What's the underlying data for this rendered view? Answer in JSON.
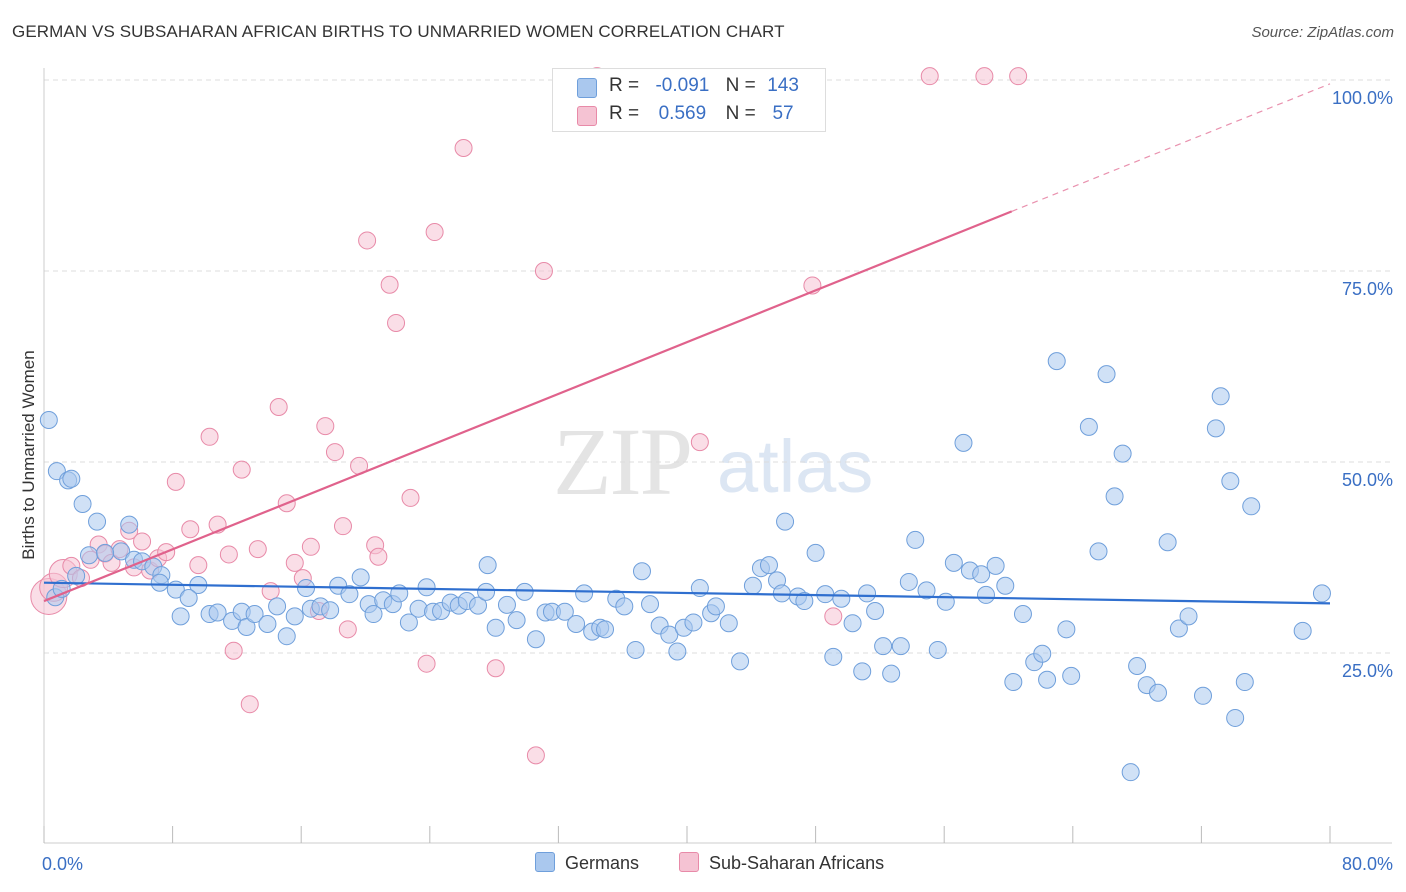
{
  "title": "GERMAN VS SUBSAHARAN AFRICAN BIRTHS TO UNMARRIED WOMEN CORRELATION CHART",
  "source": "Source: ZipAtlas.com",
  "watermark": {
    "zip": "ZIP",
    "atlas": "atlas"
  },
  "colors": {
    "germans_fill": "#aac8ee",
    "germans_stroke": "#6f9fdb",
    "germans_line": "#2f6fcf",
    "ssa_fill": "#f5c3d3",
    "ssa_stroke": "#e88aa8",
    "ssa_line": "#e0628c",
    "tick_label": "#3a6fc4",
    "grid": "#dcdcdc"
  },
  "legend_top": [
    {
      "r_label": "R =",
      "r_value": "-0.091",
      "n_label": "N =",
      "n_value": "143"
    },
    {
      "r_label": "R =",
      "r_value": "0.569",
      "n_label": "N =",
      "n_value": "57"
    }
  ],
  "legend_bottom": [
    "Germans",
    "Sub-Saharan Africans"
  ],
  "chart_data": {
    "type": "scatter",
    "title": "GERMAN VS SUBSAHARAN AFRICAN BIRTHS TO UNMARRIED WOMEN CORRELATION CHART",
    "xlabel": "",
    "ylabel": "Births to Unmarried Women",
    "xlim": [
      0,
      80
    ],
    "ylim": [
      0,
      105
    ],
    "x_tick_labels": [
      "0.0%",
      "80.0%"
    ],
    "y_ticks": [
      25,
      50,
      75,
      100
    ],
    "y_tick_labels": [
      "25.0%",
      "50.0%",
      "75.0%",
      "100.0%"
    ],
    "grid": "horizontal dashed",
    "legend_position": "top-center",
    "series": [
      {
        "name": "Germans",
        "R": -0.091,
        "N": 143,
        "trend": {
          "x": [
            0,
            80
          ],
          "y": [
            34.2,
            31.5
          ]
        },
        "points": [
          [
            0.3,
            55.5
          ],
          [
            0.8,
            48.8
          ],
          [
            1.5,
            47.6
          ],
          [
            1.7,
            47.8
          ],
          [
            2.4,
            44.5
          ],
          [
            3.3,
            42.2
          ],
          [
            2.8,
            37.8
          ],
          [
            5.3,
            41.8
          ],
          [
            4.8,
            38.3
          ],
          [
            5.6,
            37.2
          ],
          [
            6.1,
            37.0
          ],
          [
            6.8,
            36.3
          ],
          [
            7.3,
            35.2
          ],
          [
            7.2,
            34.2
          ],
          [
            8.2,
            33.3
          ],
          [
            9.6,
            33.9
          ],
          [
            9.0,
            32.2
          ],
          [
            8.5,
            29.8
          ],
          [
            10.3,
            30.1
          ],
          [
            10.8,
            30.3
          ],
          [
            11.7,
            29.2
          ],
          [
            12.3,
            30.4
          ],
          [
            12.6,
            28.4
          ],
          [
            13.1,
            30.1
          ],
          [
            13.9,
            28.8
          ],
          [
            14.5,
            31.1
          ],
          [
            15.1,
            27.2
          ],
          [
            15.6,
            29.8
          ],
          [
            16.3,
            33.5
          ],
          [
            16.6,
            30.8
          ],
          [
            17.2,
            31.1
          ],
          [
            17.8,
            30.6
          ],
          [
            18.3,
            33.8
          ],
          [
            19.0,
            32.7
          ],
          [
            19.7,
            34.9
          ],
          [
            20.2,
            31.4
          ],
          [
            20.5,
            30.1
          ],
          [
            21.1,
            31.9
          ],
          [
            21.7,
            31.4
          ],
          [
            22.1,
            32.8
          ],
          [
            22.7,
            29.0
          ],
          [
            23.3,
            30.8
          ],
          [
            23.8,
            33.6
          ],
          [
            24.2,
            30.4
          ],
          [
            24.7,
            30.5
          ],
          [
            25.3,
            31.6
          ],
          [
            25.8,
            31.2
          ],
          [
            26.3,
            31.8
          ],
          [
            27.0,
            31.2
          ],
          [
            27.6,
            36.5
          ],
          [
            27.5,
            33.0
          ],
          [
            28.1,
            28.3
          ],
          [
            28.8,
            31.3
          ],
          [
            29.4,
            29.3
          ],
          [
            29.9,
            33.0
          ],
          [
            30.6,
            26.8
          ],
          [
            31.2,
            30.3
          ],
          [
            31.6,
            30.4
          ],
          [
            32.4,
            30.4
          ],
          [
            33.1,
            28.8
          ],
          [
            33.6,
            32.8
          ],
          [
            34.1,
            27.8
          ],
          [
            34.6,
            28.3
          ],
          [
            34.9,
            28.1
          ],
          [
            35.6,
            32.1
          ],
          [
            36.1,
            31.1
          ],
          [
            36.8,
            25.4
          ],
          [
            37.2,
            35.7
          ],
          [
            37.7,
            31.4
          ],
          [
            38.3,
            28.6
          ],
          [
            38.9,
            27.4
          ],
          [
            39.4,
            25.2
          ],
          [
            39.8,
            28.3
          ],
          [
            40.4,
            29.0
          ],
          [
            40.8,
            33.5
          ],
          [
            41.5,
            30.2
          ],
          [
            41.8,
            31.1
          ],
          [
            42.6,
            28.9
          ],
          [
            43.3,
            23.9
          ],
          [
            44.1,
            33.8
          ],
          [
            44.6,
            36.1
          ],
          [
            45.1,
            36.5
          ],
          [
            45.6,
            34.5
          ],
          [
            45.9,
            32.8
          ],
          [
            46.1,
            42.2
          ],
          [
            46.9,
            32.4
          ],
          [
            47.3,
            31.8
          ],
          [
            48.0,
            38.1
          ],
          [
            48.6,
            32.7
          ],
          [
            49.1,
            24.5
          ],
          [
            49.6,
            32.1
          ],
          [
            50.3,
            28.9
          ],
          [
            50.9,
            22.6
          ],
          [
            51.2,
            32.8
          ],
          [
            51.7,
            30.5
          ],
          [
            52.2,
            25.9
          ],
          [
            52.7,
            22.3
          ],
          [
            53.3,
            25.9
          ],
          [
            53.8,
            34.3
          ],
          [
            54.2,
            39.8
          ],
          [
            54.9,
            33.2
          ],
          [
            55.6,
            25.4
          ],
          [
            56.1,
            31.7
          ],
          [
            56.6,
            36.8
          ],
          [
            57.2,
            52.5
          ],
          [
            57.6,
            35.8
          ],
          [
            58.3,
            35.3
          ],
          [
            58.6,
            32.6
          ],
          [
            59.2,
            36.4
          ],
          [
            59.8,
            33.8
          ],
          [
            60.3,
            21.2
          ],
          [
            60.9,
            30.1
          ],
          [
            61.6,
            23.8
          ],
          [
            62.1,
            24.9
          ],
          [
            62.4,
            21.5
          ],
          [
            63.0,
            63.2
          ],
          [
            63.6,
            28.1
          ],
          [
            63.9,
            22.0
          ],
          [
            65.0,
            54.6
          ],
          [
            65.6,
            38.3
          ],
          [
            66.1,
            61.5
          ],
          [
            66.6,
            45.5
          ],
          [
            67.1,
            51.1
          ],
          [
            67.6,
            9.4
          ],
          [
            68.0,
            23.3
          ],
          [
            68.6,
            20.8
          ],
          [
            69.3,
            19.8
          ],
          [
            69.9,
            39.5
          ],
          [
            70.6,
            28.2
          ],
          [
            71.2,
            29.8
          ],
          [
            72.1,
            19.4
          ],
          [
            72.9,
            54.4
          ],
          [
            73.2,
            58.6
          ],
          [
            73.8,
            47.5
          ],
          [
            74.1,
            16.5
          ],
          [
            74.7,
            21.2
          ],
          [
            75.1,
            44.2
          ],
          [
            78.3,
            27.9
          ],
          [
            79.5,
            32.8
          ],
          [
            0.7,
            32.3
          ],
          [
            1.1,
            33.4
          ],
          [
            2.0,
            35.1
          ],
          [
            3.8,
            38.1
          ]
        ]
      },
      {
        "name": "Sub-Saharan Africans",
        "R": 0.569,
        "N": 57,
        "trend": {
          "x": [
            0,
            60.2
          ],
          "y": [
            31.8,
            82.8
          ]
        },
        "trend_dashed": {
          "x": [
            60.2,
            80
          ],
          "y": [
            82.8,
            99.5
          ]
        },
        "points": [
          [
            0.3,
            32.4
          ],
          [
            0.6,
            33.6
          ],
          [
            1.2,
            35.4
          ],
          [
            1.7,
            36.4
          ],
          [
            2.3,
            34.8
          ],
          [
            2.9,
            37.2
          ],
          [
            3.4,
            39.2
          ],
          [
            3.8,
            38.0
          ],
          [
            4.2,
            36.8
          ],
          [
            4.7,
            38.6
          ],
          [
            5.3,
            41.0
          ],
          [
            5.6,
            36.2
          ],
          [
            6.1,
            39.6
          ],
          [
            6.6,
            35.8
          ],
          [
            7.1,
            37.4
          ],
          [
            7.6,
            38.2
          ],
          [
            8.2,
            47.4
          ],
          [
            9.1,
            41.2
          ],
          [
            9.6,
            36.5
          ],
          [
            10.3,
            53.3
          ],
          [
            10.8,
            41.8
          ],
          [
            11.5,
            37.9
          ],
          [
            11.8,
            25.3
          ],
          [
            12.3,
            49.0
          ],
          [
            12.8,
            18.3
          ],
          [
            13.3,
            38.6
          ],
          [
            14.1,
            33.1
          ],
          [
            14.6,
            57.2
          ],
          [
            15.1,
            44.6
          ],
          [
            15.6,
            36.8
          ],
          [
            16.1,
            34.8
          ],
          [
            16.6,
            38.9
          ],
          [
            17.1,
            30.5
          ],
          [
            17.5,
            54.7
          ],
          [
            18.1,
            51.3
          ],
          [
            18.6,
            41.6
          ],
          [
            18.9,
            28.1
          ],
          [
            19.6,
            49.5
          ],
          [
            20.1,
            79.0
          ],
          [
            20.6,
            39.1
          ],
          [
            20.8,
            37.6
          ],
          [
            21.5,
            73.2
          ],
          [
            21.9,
            68.2
          ],
          [
            22.8,
            45.3
          ],
          [
            23.8,
            23.6
          ],
          [
            24.3,
            80.1
          ],
          [
            26.1,
            91.1
          ],
          [
            28.1,
            23.0
          ],
          [
            30.6,
            11.6
          ],
          [
            31.1,
            75.0
          ],
          [
            34.4,
            100.5
          ],
          [
            40.8,
            52.6
          ],
          [
            47.8,
            73.1
          ],
          [
            49.1,
            29.8
          ],
          [
            55.1,
            100.5
          ],
          [
            58.5,
            100.5
          ],
          [
            60.6,
            100.5
          ]
        ]
      }
    ]
  }
}
